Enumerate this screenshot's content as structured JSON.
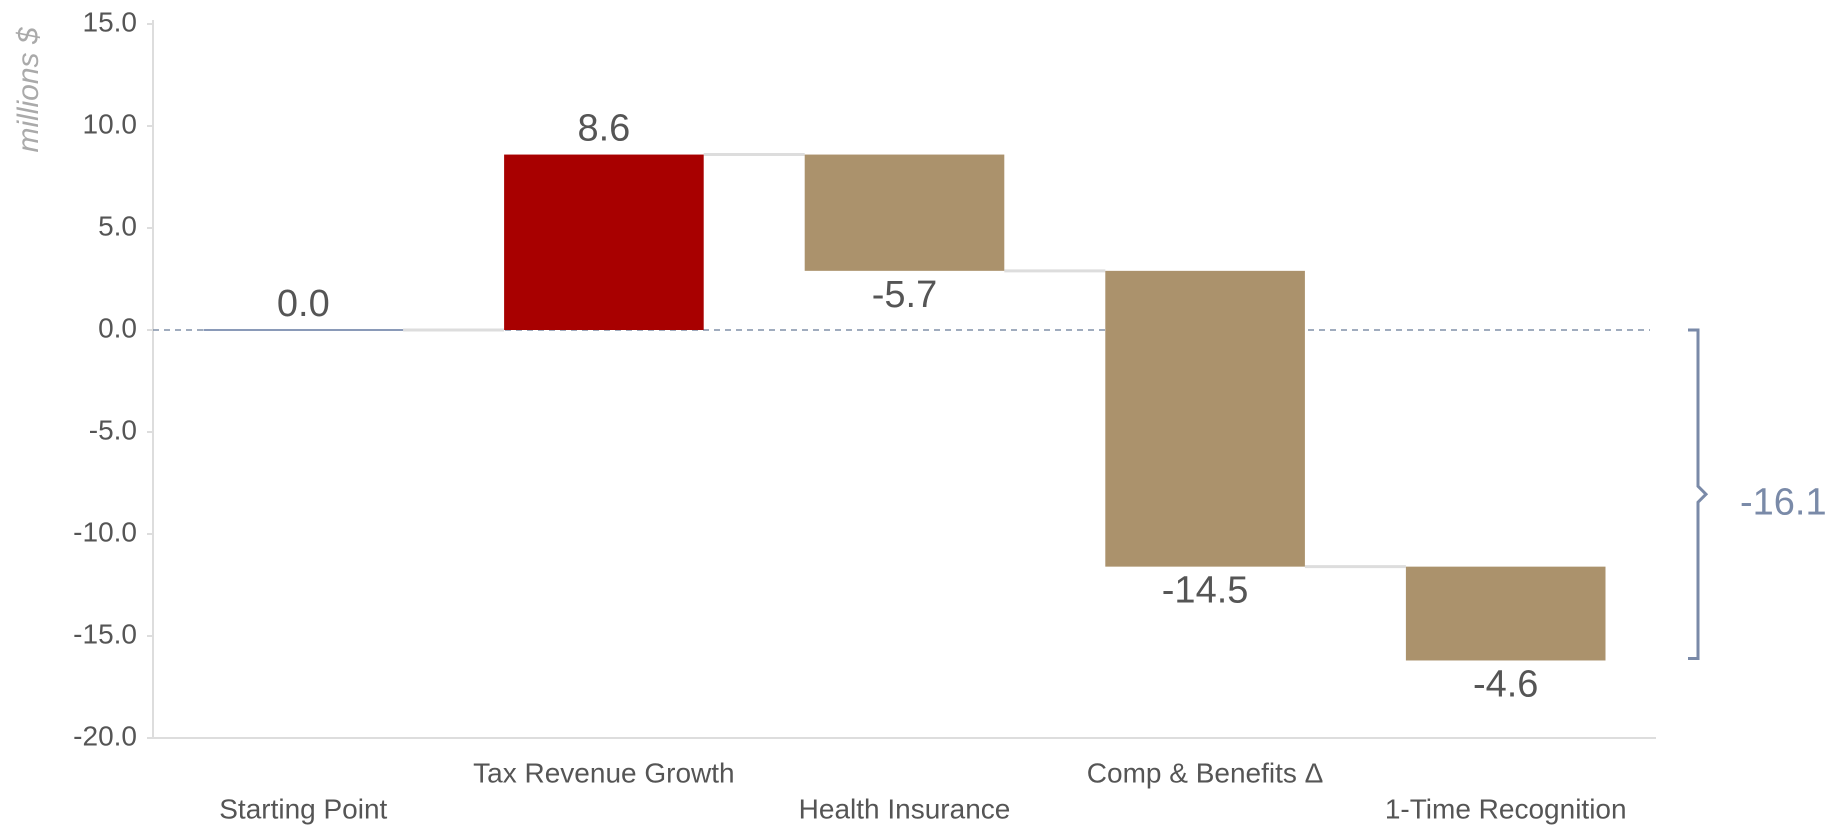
{
  "chart_data": {
    "type": "waterfall",
    "ylabel": "millions $",
    "categories": [
      "Starting Point",
      "Tax Revenue Growth",
      "Health Insurance",
      "Comp & Benefits Δ",
      "1-Time Recognition"
    ],
    "values": [
      0,
      8.6,
      -5.7,
      -14.5,
      -4.6
    ],
    "value_labels": [
      "0.0",
      "8.6",
      "-5.7",
      "-14.5",
      "-4.6"
    ],
    "colors": [
      "#8a9ab8",
      "#a80000",
      "#ab926c",
      "#ab926c",
      "#ab926c"
    ],
    "total": -16.1,
    "ylim": [
      -20,
      15
    ],
    "yticks": [
      {
        "value": 15,
        "label": "15.0"
      },
      {
        "value": 10,
        "label": "10.0"
      },
      {
        "value": 5,
        "label": "5.0"
      },
      {
        "value": 0,
        "label": "0.0"
      },
      {
        "value": -5,
        "label": "-5.0"
      },
      {
        "value": -10,
        "label": "-10.0"
      },
      {
        "value": -15,
        "label": "-15.0"
      },
      {
        "value": -20,
        "label": "-20.0"
      }
    ],
    "grid": false
  }
}
